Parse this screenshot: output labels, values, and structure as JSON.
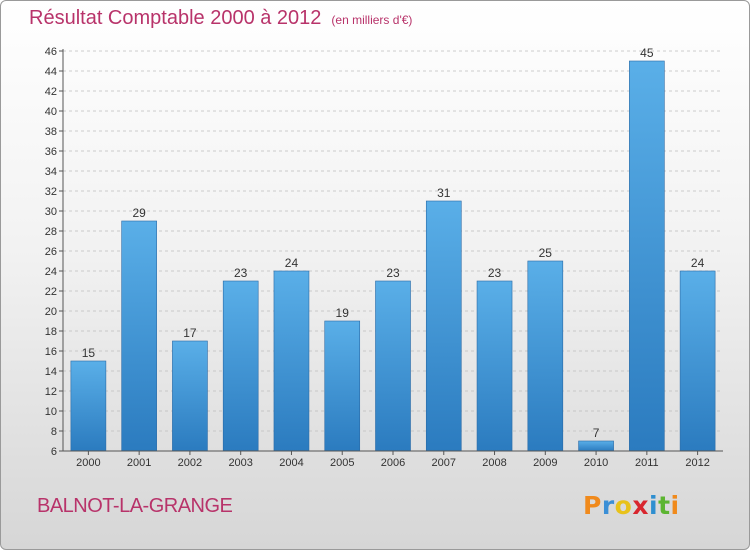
{
  "header": {
    "title": "Résultat Comptable 2000 à 2012",
    "unit": "(en milliers d'€)"
  },
  "footer": {
    "commune": "BALNOT-LA-GRANGE",
    "logo_text": "Proxiti"
  },
  "colors": {
    "title": "#b8336a",
    "bar_top": "#5aafe8",
    "bar_bottom": "#2b7bbf"
  },
  "chart_data": {
    "type": "bar",
    "categories": [
      "2000",
      "2001",
      "2002",
      "2003",
      "2004",
      "2005",
      "2006",
      "2007",
      "2008",
      "2009",
      "2010",
      "2011",
      "2012"
    ],
    "values": [
      15,
      29,
      17,
      23,
      24,
      19,
      23,
      31,
      23,
      25,
      7,
      45,
      24
    ],
    "yticks": [
      6,
      8,
      10,
      12,
      14,
      16,
      18,
      20,
      22,
      24,
      26,
      28,
      30,
      32,
      34,
      36,
      38,
      40,
      42,
      44,
      46
    ],
    "ylim": [
      6,
      46
    ],
    "grid": true,
    "data_labels": true
  }
}
